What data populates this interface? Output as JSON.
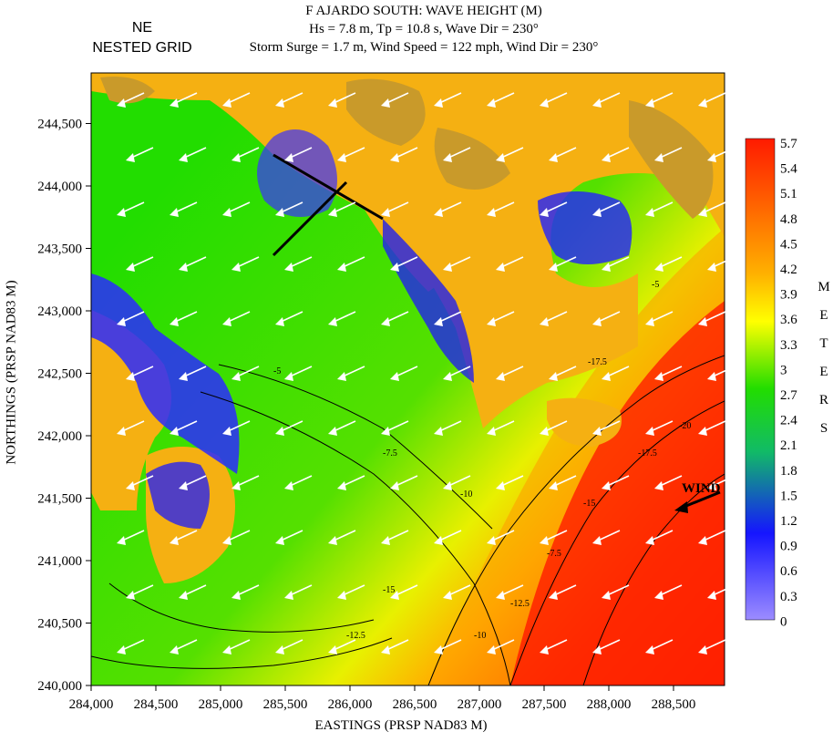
{
  "title": {
    "line1": "F AJARDO SOUTH: WAVE HEIGHT (M)",
    "line2": "Hs = 7.8 m, Tp = 10.8 s, Wave Dir = 230°",
    "line3": "Storm Surge = 1.7 m, Wind Speed = 122 mph, Wind Dir = 230°"
  },
  "grid_label": {
    "line1": "NE",
    "line2": "NESTED GRID"
  },
  "axes": {
    "xlabel": "EASTINGS (PRSP NAD83 M)",
    "ylabel": "NORTHINGS (PRSP NAD83 M)",
    "x_ticks": [
      "284,000",
      "284,500",
      "285,000",
      "285,500",
      "286,000",
      "286,500",
      "287,000",
      "287,500",
      "288,000",
      "288,500"
    ],
    "y_ticks": [
      "240,000",
      "240,500",
      "241,000",
      "241,500",
      "242,000",
      "242,500",
      "243,000",
      "243,500",
      "244,000",
      "244,500"
    ]
  },
  "wind_label": "WIND",
  "colorbar": {
    "labels": [
      "5.7",
      "5.4",
      "5.1",
      "4.8",
      "4.5",
      "4.2",
      "3.9",
      "3.6",
      "3.3",
      "3",
      "2.7",
      "2.4",
      "2.1",
      "1.8",
      "1.5",
      "1.2",
      "0.9",
      "0.6",
      "0.3",
      "0"
    ],
    "units_letters": [
      "M",
      "E",
      "T",
      "E",
      "R",
      "S"
    ],
    "colors": {
      "max": "#ff1a00",
      "orange": "#ff8c00",
      "yellow": "#ffff00",
      "green": "#22dd00",
      "blue": "#1515ff",
      "min": "#9c8cff"
    }
  },
  "contour_labels": [
    "-5",
    "-7.5",
    "-10",
    "-12.5",
    "-15",
    "-17.5",
    "-20"
  ],
  "land_color": "#f5b012",
  "upland_color": "#c99a2a"
}
